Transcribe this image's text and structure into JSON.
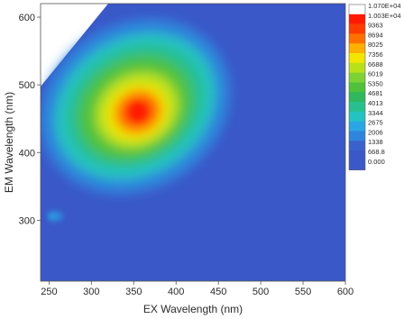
{
  "chart_data": {
    "type": "heatmap",
    "title": "",
    "xlabel": "EX Wavelength (nm)",
    "ylabel": "EM Wavelength (nm)",
    "xlim": [
      240,
      600
    ],
    "ylim": [
      210,
      620
    ],
    "x_ticks": [
      "250",
      "300",
      "350",
      "400",
      "450",
      "500",
      "550",
      "600"
    ],
    "y_ticks": [
      "300",
      "400",
      "500",
      "600"
    ],
    "colorbar": {
      "labels": [
        "1.070E+04",
        "1.003E+04",
        "9363",
        "8694",
        "8025",
        "7356",
        "6688",
        "6019",
        "5350",
        "4681",
        "4013",
        "3344",
        "2675",
        "2006",
        "1338",
        "668.8",
        "0.000"
      ],
      "colors": [
        "#ffffff",
        "#ff1a00",
        "#ff3c00",
        "#ff7000",
        "#ffb000",
        "#f2e600",
        "#b8e11a",
        "#7ed234",
        "#4fc13c",
        "#2fb85c",
        "#27c08e",
        "#25c2c2",
        "#2aa6e4",
        "#2f85dc",
        "#3a62cc",
        "#3a58c8",
        "#3a58c8"
      ]
    },
    "peaks": [
      {
        "ex": 350,
        "em": 440,
        "intensity": 10700
      },
      {
        "ex": 250,
        "em": 305,
        "intensity": 1400
      }
    ],
    "grid": false
  }
}
